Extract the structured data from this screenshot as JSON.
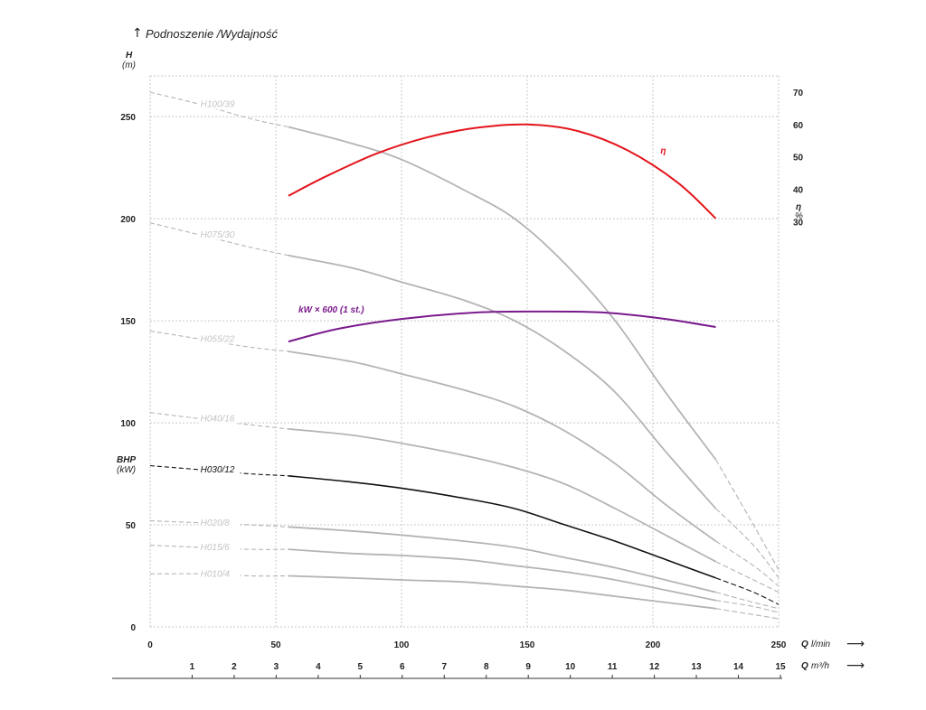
{
  "chart_data": {
    "type": "line",
    "caption": "Podnoszenie /Wydajność",
    "y_left": {
      "label": "H",
      "unit": "(m)",
      "ticks": [
        0,
        50,
        100,
        150,
        200,
        250
      ],
      "range": [
        0,
        270
      ],
      "secondary_label": "BHP",
      "secondary_unit": "(kW)"
    },
    "y_right": {
      "label": "η",
      "unit": "%",
      "ticks": [
        30,
        40,
        50,
        60,
        70
      ],
      "range": [
        -95,
        75
      ]
    },
    "x_main": {
      "label_q": "Q",
      "unit": "l/min",
      "ticks": [
        0,
        50,
        100,
        150,
        200,
        250
      ],
      "range": [
        0,
        250
      ]
    },
    "x_secondary": {
      "label_q": "Q",
      "unit": "m³/h",
      "ticks": [
        1,
        2,
        3,
        4,
        5,
        6,
        7,
        8,
        9,
        10,
        11,
        12,
        13,
        14,
        15
      ],
      "range": [
        0,
        15
      ]
    },
    "grid": true,
    "colors": {
      "pump": "#b4b4b4",
      "pump_label": "#c4c4c4",
      "selected": "#111111",
      "efficiency": "#e3141b",
      "power": "#7a1a8c",
      "axis": "#333333"
    },
    "series": [
      {
        "name": "H100/39",
        "color": "#b4b4b4",
        "dashed_start": [
          [
            0,
            262
          ],
          [
            20,
            256
          ],
          [
            40,
            249
          ],
          [
            55,
            245
          ]
        ],
        "solid": [
          [
            55,
            245
          ],
          [
            80,
            237
          ],
          [
            100,
            229
          ],
          [
            125,
            214
          ],
          [
            145,
            200
          ],
          [
            165,
            178
          ],
          [
            185,
            150
          ],
          [
            205,
            115
          ],
          [
            225,
            82
          ]
        ],
        "dashed_end": [
          [
            225,
            82
          ],
          [
            240,
            50
          ],
          [
            250,
            28
          ]
        ]
      },
      {
        "name": "H075/30",
        "color": "#b4b4b4",
        "dashed_start": [
          [
            0,
            198
          ],
          [
            20,
            192
          ],
          [
            40,
            186
          ],
          [
            55,
            182
          ]
        ],
        "solid": [
          [
            55,
            182
          ],
          [
            80,
            176
          ],
          [
            100,
            169
          ],
          [
            125,
            160
          ],
          [
            145,
            150
          ],
          [
            165,
            135
          ],
          [
            185,
            115
          ],
          [
            205,
            86
          ],
          [
            225,
            58
          ]
        ],
        "dashed_end": [
          [
            225,
            58
          ],
          [
            240,
            40
          ],
          [
            250,
            24
          ]
        ]
      },
      {
        "name": "H055/22",
        "color": "#b4b4b4",
        "dashed_start": [
          [
            0,
            145
          ],
          [
            20,
            141
          ],
          [
            40,
            137
          ],
          [
            55,
            135
          ]
        ],
        "solid": [
          [
            55,
            135
          ],
          [
            80,
            130
          ],
          [
            100,
            124
          ],
          [
            125,
            116
          ],
          [
            145,
            108
          ],
          [
            165,
            96
          ],
          [
            185,
            80
          ],
          [
            205,
            60
          ],
          [
            225,
            42
          ]
        ],
        "dashed_end": [
          [
            225,
            42
          ],
          [
            240,
            30
          ],
          [
            250,
            20
          ]
        ]
      },
      {
        "name": "H040/16",
        "color": "#b4b4b4",
        "dashed_start": [
          [
            0,
            105
          ],
          [
            20,
            102
          ],
          [
            40,
            99
          ],
          [
            55,
            97
          ]
        ],
        "solid": [
          [
            55,
            97
          ],
          [
            80,
            94
          ],
          [
            100,
            90
          ],
          [
            125,
            84
          ],
          [
            145,
            78
          ],
          [
            165,
            70
          ],
          [
            185,
            58
          ],
          [
            205,
            45
          ],
          [
            225,
            32
          ]
        ],
        "dashed_end": [
          [
            225,
            32
          ],
          [
            240,
            23
          ],
          [
            250,
            17
          ]
        ]
      },
      {
        "name": "H030/12",
        "color": "#111111",
        "dashed_start": [
          [
            0,
            79
          ],
          [
            20,
            77
          ],
          [
            40,
            75
          ],
          [
            55,
            74
          ]
        ],
        "solid": [
          [
            55,
            74
          ],
          [
            80,
            71
          ],
          [
            100,
            68
          ],
          [
            125,
            63
          ],
          [
            145,
            58
          ],
          [
            165,
            50
          ],
          [
            185,
            42
          ],
          [
            205,
            33
          ],
          [
            225,
            24
          ]
        ],
        "dashed_end": [
          [
            225,
            24
          ],
          [
            240,
            17
          ],
          [
            250,
            11
          ]
        ]
      },
      {
        "name": "H020/8",
        "color": "#b4b4b4",
        "dashed_start": [
          [
            0,
            52
          ],
          [
            20,
            51
          ],
          [
            40,
            50
          ],
          [
            55,
            49
          ]
        ],
        "solid": [
          [
            55,
            49
          ],
          [
            80,
            47
          ],
          [
            100,
            45
          ],
          [
            125,
            42
          ],
          [
            145,
            39
          ],
          [
            165,
            34
          ],
          [
            185,
            29
          ],
          [
            205,
            23
          ],
          [
            225,
            17
          ]
        ],
        "dashed_end": [
          [
            225,
            17
          ],
          [
            240,
            12
          ],
          [
            250,
            9
          ]
        ]
      },
      {
        "name": "H015/6",
        "color": "#b4b4b4",
        "dashed_start": [
          [
            0,
            40
          ],
          [
            20,
            39
          ],
          [
            40,
            38
          ],
          [
            55,
            38
          ]
        ],
        "solid": [
          [
            55,
            38
          ],
          [
            80,
            36
          ],
          [
            100,
            35
          ],
          [
            125,
            33
          ],
          [
            145,
            30
          ],
          [
            165,
            27
          ],
          [
            185,
            23
          ],
          [
            205,
            18
          ],
          [
            225,
            13
          ]
        ],
        "dashed_end": [
          [
            225,
            13
          ],
          [
            240,
            10
          ],
          [
            250,
            7
          ]
        ]
      },
      {
        "name": "H010/4",
        "color": "#b4b4b4",
        "dashed_start": [
          [
            0,
            26
          ],
          [
            20,
            26
          ],
          [
            40,
            25
          ],
          [
            55,
            25
          ]
        ],
        "solid": [
          [
            55,
            25
          ],
          [
            80,
            24
          ],
          [
            100,
            23
          ],
          [
            125,
            22
          ],
          [
            145,
            20
          ],
          [
            165,
            18
          ],
          [
            185,
            15
          ],
          [
            205,
            12
          ],
          [
            225,
            9
          ]
        ],
        "dashed_end": [
          [
            225,
            9
          ],
          [
            240,
            6
          ],
          [
            250,
            4
          ]
        ]
      },
      {
        "name": "η",
        "axis": "right",
        "color": "#e3141b",
        "solid": [
          [
            55,
            38
          ],
          [
            70,
            44
          ],
          [
            90,
            51
          ],
          [
            110,
            56
          ],
          [
            130,
            59
          ],
          [
            150,
            60
          ],
          [
            170,
            58
          ],
          [
            190,
            52
          ],
          [
            210,
            42
          ],
          [
            225,
            31
          ]
        ]
      },
      {
        "name": "kW × 600 (1 st.)",
        "axis": "right",
        "color": "#7a1a8c",
        "solid": [
          [
            55,
            -7
          ],
          [
            75,
            -3
          ],
          [
            100,
            0
          ],
          [
            130,
            2
          ],
          [
            155,
            2.3
          ],
          [
            180,
            2
          ],
          [
            205,
            0
          ],
          [
            225,
            -2.5
          ]
        ]
      }
    ]
  }
}
